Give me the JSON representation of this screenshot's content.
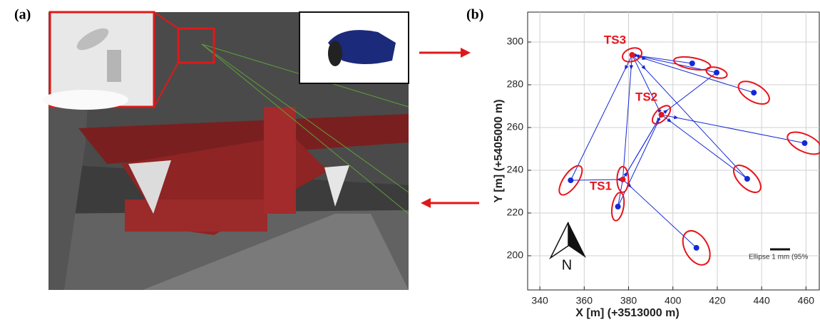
{
  "panels": {
    "a": "(a)",
    "b": "(b)"
  },
  "chart_data": {
    "type": "scatter",
    "xlabel": "X [m] (+3513000 m)",
    "ylabel": "Y [m] (+5405000 m)",
    "xlim": [
      334.5,
      466
    ],
    "ylim": [
      184,
      314
    ],
    "xticks": [
      340,
      360,
      380,
      400,
      420,
      440,
      460
    ],
    "yticks": [
      200,
      220,
      240,
      260,
      280,
      300
    ],
    "grid": true,
    "stations": {
      "labels": [
        "TS1",
        "TS2",
        "TS3"
      ],
      "x": [
        377.4,
        394.8,
        381.6
      ],
      "y": [
        235.7,
        266,
        294
      ],
      "color": "#e8141c"
    },
    "targets": {
      "x": [
        408.7,
        419.7,
        436.5,
        459.4,
        433.5,
        410.6,
        375.2,
        353.9
      ],
      "y": [
        290,
        285.7,
        276.3,
        252.7,
        236,
        203.7,
        223,
        235.3
      ],
      "color": "#1429d6"
    },
    "north": "N",
    "scale_note": "Ellipse 1 mm (95%"
  }
}
